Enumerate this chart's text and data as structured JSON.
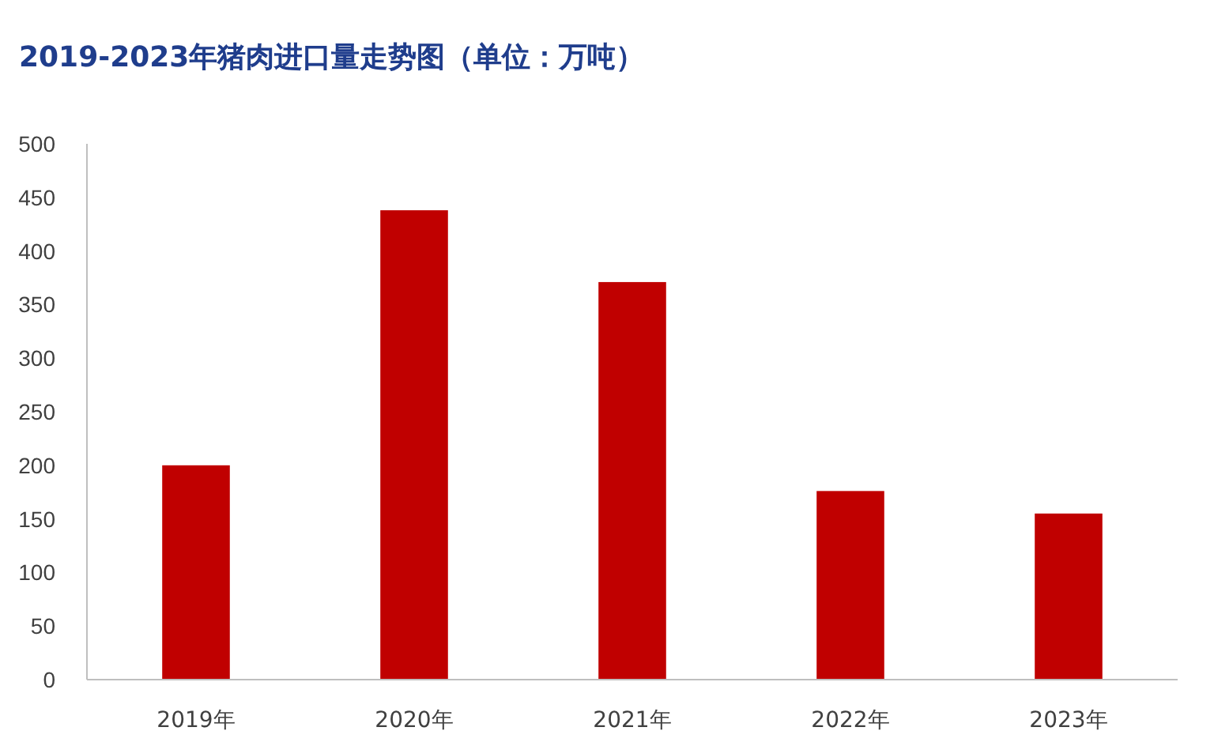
{
  "chart_data": {
    "type": "bar",
    "title": "2019-2023年猪肉进口量走势图（单位：万吨）",
    "categories": [
      "2019年",
      "2020年",
      "2021年",
      "2022年",
      "2023年"
    ],
    "values": [
      200,
      438,
      371,
      176,
      155
    ],
    "color": "#c00000",
    "ylim": [
      0,
      500
    ],
    "yticks": [
      0,
      50,
      100,
      150,
      200,
      250,
      300,
      350,
      400,
      450,
      500
    ]
  }
}
